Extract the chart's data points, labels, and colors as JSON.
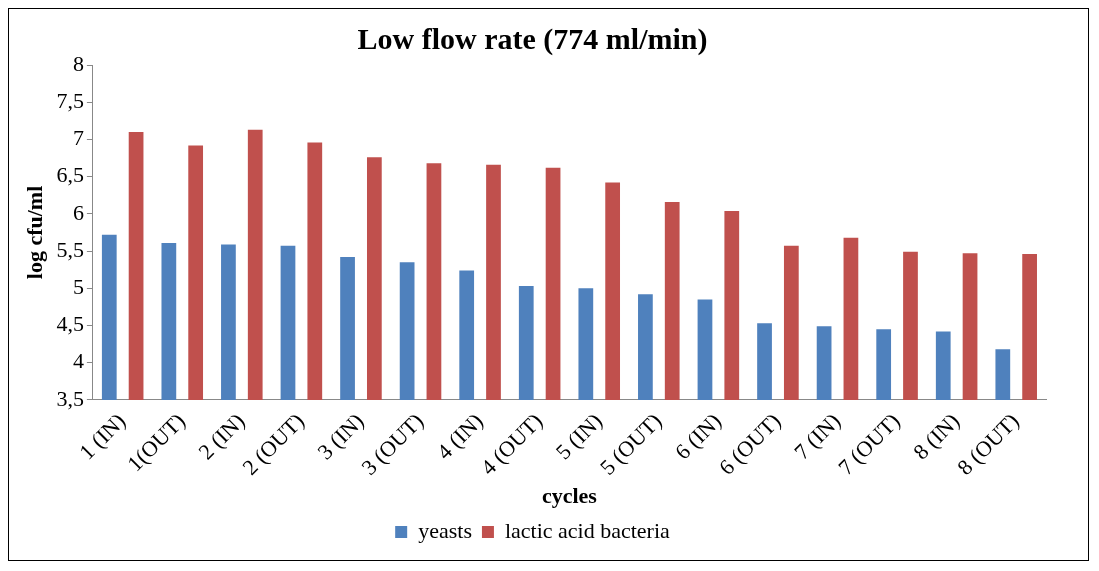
{
  "chart_data": {
    "type": "bar",
    "title": "Low flow rate (774 ml/min)",
    "xlabel": "cycles",
    "ylabel": "log cfu/ml",
    "categories": [
      "1 (IN)",
      "1(OUT)",
      "2 (IN)",
      "2 (OUT)",
      "3 (IN)",
      "3 (OUT)",
      "4 (IN)",
      "4 (OUT)",
      "5 (IN)",
      "5 (OUT)",
      "6 (IN)",
      "6 (OUT)",
      "7 (IN)",
      "7 (OUT)",
      "8 (IN)",
      "8 (OUT)"
    ],
    "series": [
      {
        "name": "yeasts",
        "color": "#4f81bd",
        "values": [
          5.72,
          5.61,
          5.59,
          5.57,
          5.42,
          5.35,
          5.24,
          5.03,
          5.0,
          4.92,
          4.85,
          4.53,
          4.49,
          4.45,
          4.42,
          4.18
        ]
      },
      {
        "name": "lactic acid bacteria",
        "color": "#c0504d",
        "values": [
          7.1,
          6.92,
          7.13,
          6.96,
          6.76,
          6.68,
          6.66,
          6.62,
          6.42,
          6.16,
          6.04,
          5.57,
          5.68,
          5.49,
          5.47,
          5.46
        ]
      }
    ],
    "ylim": [
      3.5,
      8
    ],
    "yticks": [
      {
        "value": 3.5,
        "label": "3,5"
      },
      4,
      {
        "value": 4.5,
        "label": "4,5"
      },
      5,
      {
        "value": 5.5,
        "label": "5,5"
      },
      6,
      {
        "value": 6.5,
        "label": "6,5"
      },
      7,
      {
        "value": 7.5,
        "label": "7,5"
      },
      8
    ],
    "grid": false,
    "legend": "bottom"
  }
}
